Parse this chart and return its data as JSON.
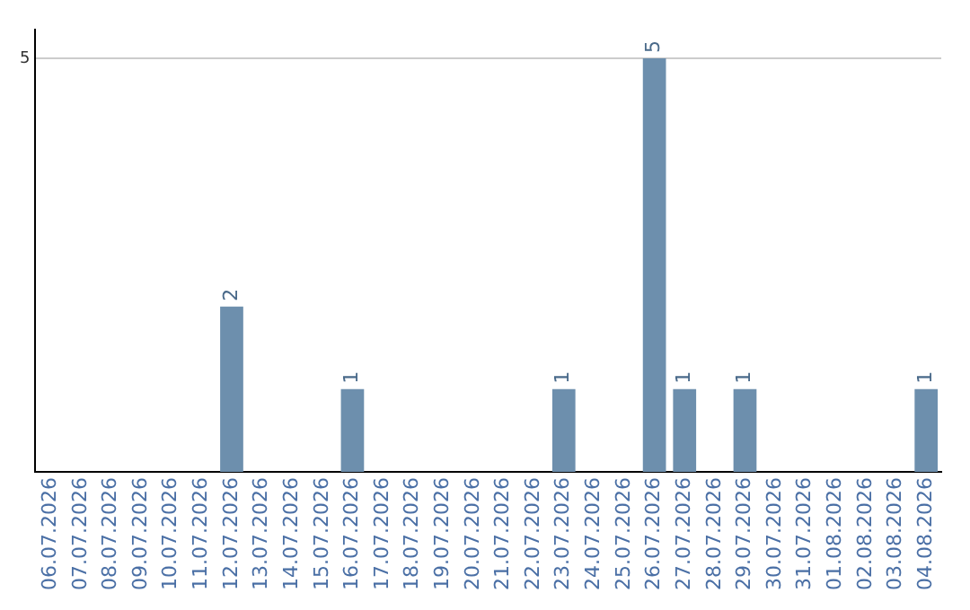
{
  "chart_data": {
    "type": "bar",
    "categories": [
      "06.07.2026",
      "07.07.2026",
      "08.07.2026",
      "09.07.2026",
      "10.07.2026",
      "11.07.2026",
      "12.07.2026",
      "13.07.2026",
      "14.07.2026",
      "15.07.2026",
      "16.07.2026",
      "17.07.2026",
      "18.07.2026",
      "19.07.2026",
      "20.07.2026",
      "21.07.2026",
      "22.07.2026",
      "23.07.2026",
      "24.07.2026",
      "25.07.2026",
      "26.07.2026",
      "27.07.2026",
      "28.07.2026",
      "29.07.2026",
      "30.07.2026",
      "31.07.2026",
      "01.08.2026",
      "02.08.2026",
      "03.08.2026",
      "04.08.2026"
    ],
    "values": [
      0,
      0,
      0,
      0,
      0,
      0,
      2,
      0,
      0,
      0,
      1,
      0,
      0,
      0,
      0,
      0,
      0,
      1,
      0,
      0,
      5,
      1,
      0,
      1,
      0,
      0,
      0,
      0,
      0,
      1
    ],
    "value_labels": [
      null,
      null,
      null,
      null,
      null,
      null,
      "2",
      null,
      null,
      null,
      "1",
      null,
      null,
      null,
      null,
      null,
      null,
      "1",
      null,
      null,
      "5",
      "1",
      null,
      "1",
      null,
      null,
      null,
      null,
      null,
      "1"
    ],
    "color": "#6d8fad",
    "ylim": [
      0,
      5.35
    ],
    "yticks": [
      5
    ],
    "grid": "y",
    "legend": false
  }
}
